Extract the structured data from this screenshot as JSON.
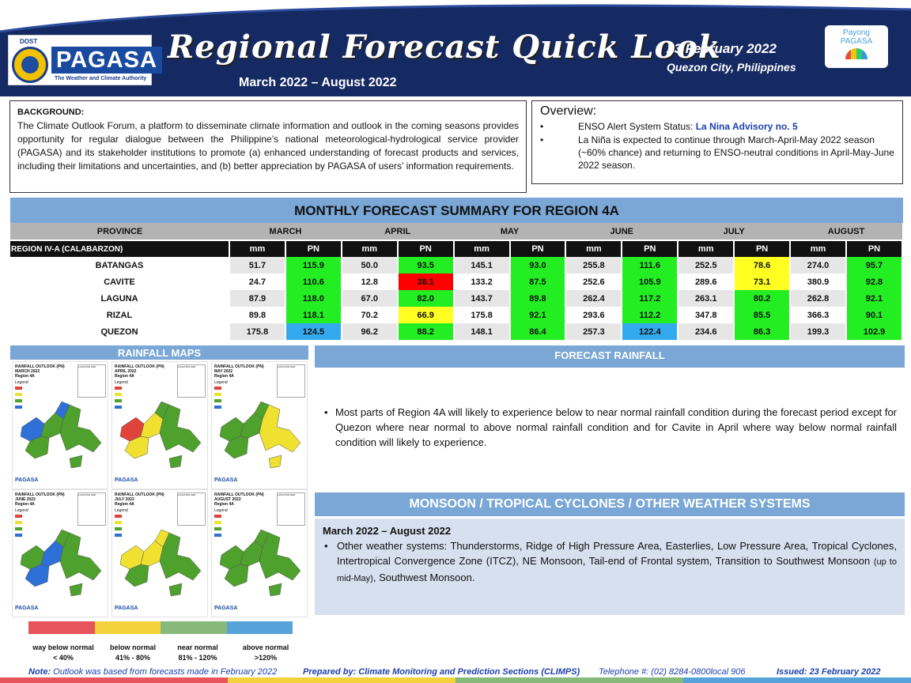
{
  "header": {
    "title": "Regional Forecast Quick Look",
    "period": "March 2022 – August 2022",
    "date": "23 February 2022",
    "place": "Quezon City, Philippines",
    "logo_dost": "DOST",
    "logo_word": "PAGASA",
    "logo_tag": "The Weather and Climate Authority",
    "payong_line1": "Payong",
    "payong_line2": "PAGASA",
    "band_color": "#152a63"
  },
  "background": {
    "heading": "BACKGROUND:",
    "text": "The Climate Outlook Forum, a platform to disseminate climate information and outlook in the coming seasons provides opportunity for regular dialogue between the Philippine’s national meteorological-hydrological service provider (PAGASA) and its stakeholder institutions to promote (a) enhanced understanding of forecast products and services, including their limitations and uncertainties, and (b) better appreciation by PAGASA of users’ information requirements."
  },
  "overview": {
    "heading": "Overview:",
    "b1_prefix": "ENSO Alert System Status: ",
    "b1_strong": "La Nina Advisory no. 5",
    "b2": "La Niña is expected to continue through March-April-May 2022 season (~60% chance) and returning to ENSO-neutral conditions in April-May-June 2022 season."
  },
  "table": {
    "title": "MONTHLY FORECAST SUMMARY FOR REGION 4A",
    "province_header": "PROVINCE",
    "region_label": "REGION IV-A  (CALABARZON)",
    "months": [
      "MARCH",
      "APRIL",
      "MAY",
      "JUNE",
      "JULY",
      "AUGUST"
    ],
    "unit_mm": "mm",
    "unit_pn": "PN",
    "rows": [
      {
        "province": "BATANGAS",
        "cells": [
          [
            "51.7",
            "115.9",
            "green"
          ],
          [
            "50.0",
            "93.5",
            "green"
          ],
          [
            "145.1",
            "93.0",
            "green"
          ],
          [
            "255.8",
            "111.6",
            "green"
          ],
          [
            "252.5",
            "78.6",
            "yellow"
          ],
          [
            "274.0",
            "95.7",
            "green"
          ]
        ]
      },
      {
        "province": "CAVITE",
        "cells": [
          [
            "24.7",
            "110.6",
            "green"
          ],
          [
            "12.8",
            "38.1",
            "red"
          ],
          [
            "133.2",
            "87.5",
            "green"
          ],
          [
            "252.6",
            "105.9",
            "green"
          ],
          [
            "289.6",
            "73.1",
            "yellow"
          ],
          [
            "380.9",
            "92.8",
            "green"
          ]
        ]
      },
      {
        "province": "LAGUNA",
        "cells": [
          [
            "87.9",
            "118.0",
            "green"
          ],
          [
            "67.0",
            "82.0",
            "green"
          ],
          [
            "143.7",
            "89.8",
            "green"
          ],
          [
            "262.4",
            "117.2",
            "green"
          ],
          [
            "263.1",
            "80.2",
            "green"
          ],
          [
            "262.8",
            "92.1",
            "green"
          ]
        ]
      },
      {
        "province": "RIZAL",
        "cells": [
          [
            "89.8",
            "118.1",
            "green"
          ],
          [
            "70.2",
            "66.9",
            "yellow"
          ],
          [
            "175.8",
            "92.1",
            "green"
          ],
          [
            "293.6",
            "112.2",
            "green"
          ],
          [
            "347.8",
            "85.5",
            "green"
          ],
          [
            "366.3",
            "90.1",
            "green"
          ]
        ]
      },
      {
        "province": "QUEZON",
        "cells": [
          [
            "175.8",
            "124.5",
            "blue"
          ],
          [
            "96.2",
            "88.2",
            "green"
          ],
          [
            "148.1",
            "86.4",
            "green"
          ],
          [
            "257.3",
            "122.4",
            "blue"
          ],
          [
            "234.6",
            "86.3",
            "green"
          ],
          [
            "199.3",
            "102.9",
            "green"
          ]
        ]
      }
    ]
  },
  "category_colors": {
    "green": "#22ee22",
    "yellow": "#ffff22",
    "red": "#ff0000",
    "blue": "#33aaee"
  },
  "rainfall_maps": {
    "title": "RAINFALL MAPS",
    "tiles": [
      {
        "title": "RAINFALL OUTLOOK (PN)",
        "month": "MARCH 2022",
        "region": "Region 4A",
        "scheme": "march"
      },
      {
        "title": "RAINFALL OUTLOOK (PN)",
        "month": "APRIL 2022",
        "region": "Region 4A",
        "scheme": "april"
      },
      {
        "title": "RAINFALL OUTLOOK (PN)",
        "month": "MAY 2022",
        "region": "Region 4A",
        "scheme": "may"
      },
      {
        "title": "RAINFALL OUTLOOK (PN)",
        "month": "JUNE 2022",
        "region": "Region 4A",
        "scheme": "june"
      },
      {
        "title": "RAINFALL OUTLOOK (PN)",
        "month": "JULY 2022",
        "region": "Region 4A",
        "scheme": "july"
      },
      {
        "title": "RAINFALL OUTLOOK (PN)",
        "month": "AUGUST 2022",
        "region": "Region 4A",
        "scheme": "august"
      }
    ],
    "legend_heading": "Legend",
    "location_map": "LOCATION MAP",
    "tile_logo": "PAGASA",
    "scale": [
      {
        "label": "way below normal",
        "range": "< 40%",
        "color": "#e8545c"
      },
      {
        "label": "below normal",
        "range": "41% -  80%",
        "color": "#f4d23c"
      },
      {
        "label": "near normal",
        "range": "81% - 120%",
        "color": "#86b97a"
      },
      {
        "label": "above normal",
        "range": ">120%",
        "color": "#55a3d8"
      }
    ]
  },
  "forecast_rainfall": {
    "title": "FORECAST RAINFALL",
    "text": "Most parts of Region 4A will likely to experience below to near normal rainfall condition during the forecast period except for Quezon where near normal to above normal rainfall condition and for Cavite in April where way below normal rainfall condition will likely to experience."
  },
  "monsoon": {
    "title": "MONSOON / TROPICAL CYCLONES / OTHER WEATHER SYSTEMS",
    "period": "March 2022 – August 2022",
    "text_a": "Other weather systems: Thunderstorms,  Ridge of High Pressure Area,  Easterlies, Low Pressure Area, Tropical Cyclones, Intertropical Convergence Zone (ITCZ), NE Monsoon, Tail-end of Frontal system, Transition to Southwest Monsoon ",
    "text_small": "(up to mid-May)",
    "text_b": ", Southwest Monsoon."
  },
  "footer": {
    "note_label": "Note:",
    "note_text": " Outlook was based from forecasts made in February 2022",
    "prepared": "Prepared by: Climate Monitoring and Prediction Sections (CLIMPS)",
    "telephone": "Telephone #: (02) 8284-0800local 906",
    "issued": "Issued: 23 February 2022",
    "bar_colors": [
      "#e8545c",
      "#f4d23c",
      "#86b97a",
      "#55a3d8"
    ]
  }
}
